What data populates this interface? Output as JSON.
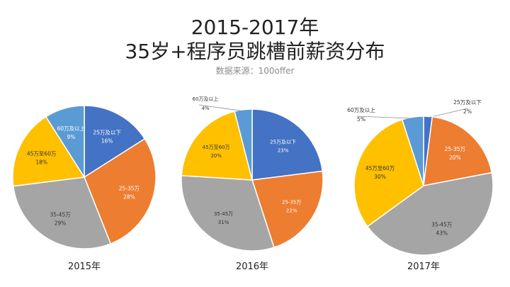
{
  "title": "2015-2017年",
  "subtitle": "35岁+程序员跳槽前薪资分布",
  "source": "数据来源：100offer",
  "colors": {
    "25万及以下": "#4472c4",
    "25-35万": "#ed7d31",
    "35-45万": "#a5a5a5",
    "45万至60万": "#ffc000",
    "60万及以上": "#5b9bd5"
  },
  "chart_data": [
    {
      "type": "pie",
      "title": "2015年",
      "slices": [
        {
          "label": "25万及以下",
          "value": 16,
          "value_label": "16%"
        },
        {
          "label": "25-35万",
          "value": 28,
          "value_label": "28%"
        },
        {
          "label": "35-45万",
          "value": 29,
          "value_label": "29%"
        },
        {
          "label": "45万至60万",
          "value": 18,
          "value_label": "18%"
        },
        {
          "label": "60万及以上",
          "value": 9,
          "value_label": "9%"
        }
      ]
    },
    {
      "type": "pie",
      "title": "2016年",
      "slices": [
        {
          "label": "25万及以下",
          "value": 23,
          "value_label": "23%"
        },
        {
          "label": "25-35万",
          "value": 22,
          "value_label": "22%"
        },
        {
          "label": "35-45万",
          "value": 31,
          "value_label": "31%"
        },
        {
          "label": "45万至60万",
          "value": 20,
          "value_label": "20%"
        },
        {
          "label": "60万及以上",
          "value": 4,
          "value_label": "4%"
        }
      ]
    },
    {
      "type": "pie",
      "title": "2017年",
      "slices": [
        {
          "label": "25万及以下",
          "value": 2,
          "value_label": "2%"
        },
        {
          "label": "25-35万",
          "value": 20,
          "value_label": "20%"
        },
        {
          "label": "35-45万",
          "value": 43,
          "value_label": "43%"
        },
        {
          "label": "45万至60万",
          "value": 30,
          "value_label": "30%"
        },
        {
          "label": "60万及以上",
          "value": 5,
          "value_label": "5%"
        }
      ]
    }
  ]
}
